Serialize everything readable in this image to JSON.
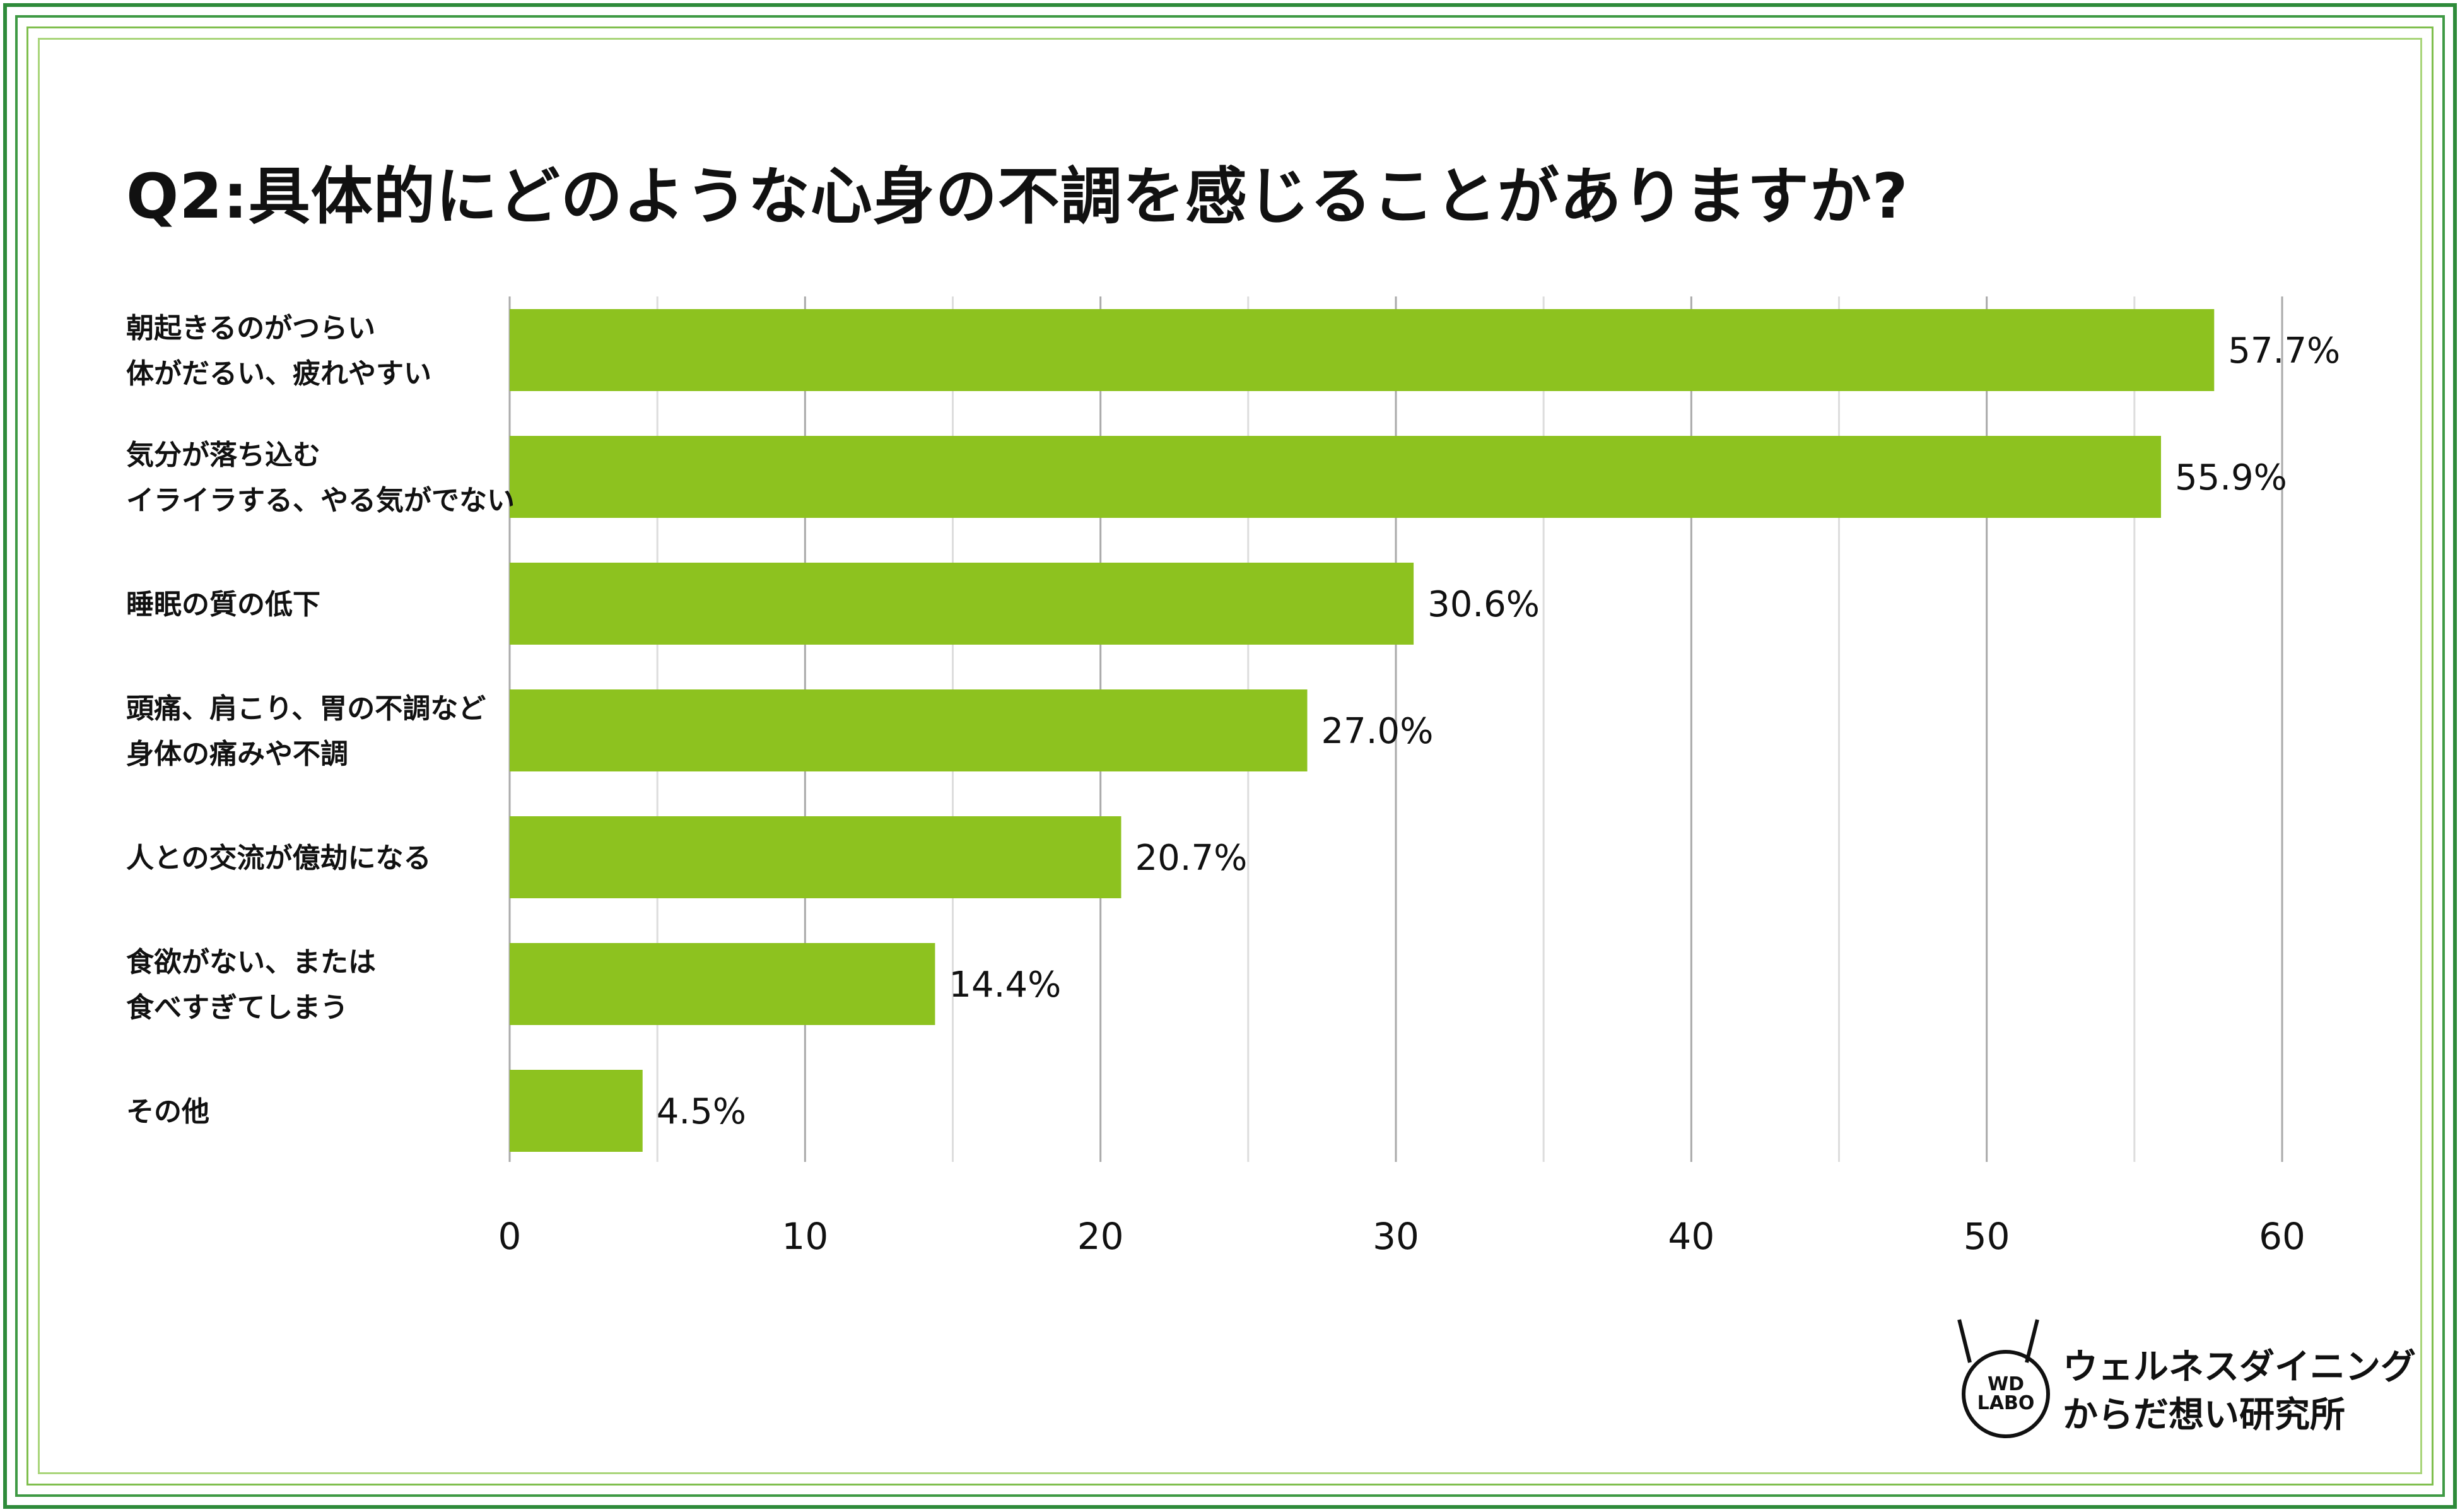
{
  "chart_data": {
    "type": "bar",
    "orientation": "horizontal",
    "title": "Q2:具体的にどのような心身の不調を感じることがありますか?",
    "categories": [
      [
        "朝起きるのがつらい",
        "体がだるい、疲れやすい"
      ],
      [
        "気分が落ち込む",
        "イライラする、やる気がでない"
      ],
      [
        "睡眠の質の低下"
      ],
      [
        "頭痛、肩こり、胃の不調など",
        "身体の痛みや不調"
      ],
      [
        "人との交流が億劫になる"
      ],
      [
        "食欲がない、または",
        "食べすぎてしまう"
      ],
      [
        "その他"
      ]
    ],
    "values": [
      57.7,
      55.9,
      30.6,
      27.0,
      20.7,
      14.4,
      4.5
    ],
    "value_labels": [
      "57.7%",
      "55.9%",
      "30.6%",
      "27.0%",
      "20.7%",
      "14.4%",
      "4.5%"
    ],
    "xlim": [
      0,
      60
    ],
    "xticks": [
      0,
      10,
      20,
      30,
      40,
      50,
      60
    ],
    "xtick_labels": [
      "0",
      "10",
      "20",
      "30",
      "40",
      "50",
      "60"
    ],
    "minor_grid_step": 5,
    "grid": true,
    "bar_color": "#8dc21f",
    "major_grid_color": "#aaaaaa",
    "minor_grid_color": "#dddddd"
  },
  "logo": {
    "mark_line1": "WD",
    "mark_line2": "LABO",
    "text_line1": "ウェルネスダイニング",
    "text_line2": "からだ想い研究所"
  }
}
